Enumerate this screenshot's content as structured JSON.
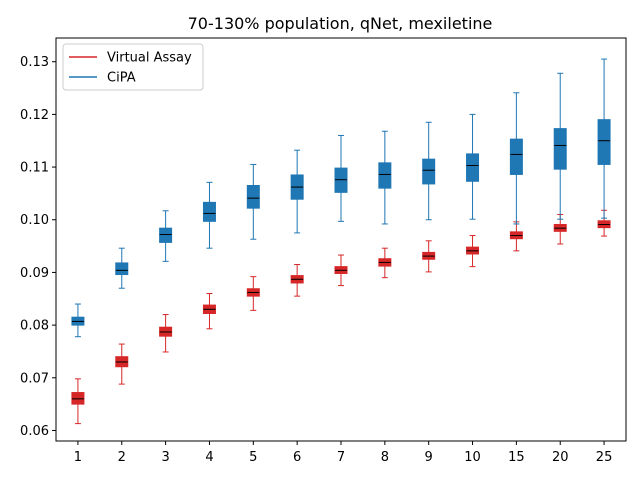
{
  "chart_data": {
    "type": "box",
    "title": "70-130% population, qNet, mexiletine",
    "xlabel": "",
    "ylabel": "",
    "categories": [
      "1",
      "2",
      "3",
      "4",
      "5",
      "6",
      "7",
      "8",
      "9",
      "10",
      "15",
      "20",
      "25"
    ],
    "ylim": [
      0.058,
      0.1345
    ],
    "yticks": [
      0.06,
      0.07,
      0.08,
      0.09,
      0.1,
      0.11,
      0.12,
      0.13
    ],
    "ytick_labels": [
      "0.06",
      "0.07",
      "0.08",
      "0.09",
      "0.10",
      "0.11",
      "0.12",
      "0.13"
    ],
    "legend": {
      "placement": "top-left"
    },
    "series": [
      {
        "name": "Virtual Assay",
        "color": "#d62728",
        "boxes": [
          {
            "whislo": 0.0613,
            "q1": 0.065,
            "med": 0.066,
            "q3": 0.0672,
            "whishi": 0.0698
          },
          {
            "whislo": 0.0688,
            "q1": 0.0721,
            "med": 0.073,
            "q3": 0.074,
            "whishi": 0.0764
          },
          {
            "whislo": 0.0749,
            "q1": 0.0779,
            "med": 0.0787,
            "q3": 0.0796,
            "whishi": 0.082
          },
          {
            "whislo": 0.0793,
            "q1": 0.0822,
            "med": 0.083,
            "q3": 0.0838,
            "whishi": 0.086
          },
          {
            "whislo": 0.0828,
            "q1": 0.0855,
            "med": 0.0862,
            "q3": 0.0869,
            "whishi": 0.0892
          },
          {
            "whislo": 0.0855,
            "q1": 0.088,
            "med": 0.0887,
            "q3": 0.0894,
            "whishi": 0.0915
          },
          {
            "whislo": 0.0875,
            "q1": 0.0898,
            "med": 0.0904,
            "q3": 0.0911,
            "whishi": 0.0933
          },
          {
            "whislo": 0.089,
            "q1": 0.0912,
            "med": 0.0919,
            "q3": 0.0926,
            "whishi": 0.0946
          },
          {
            "whislo": 0.0901,
            "q1": 0.0925,
            "med": 0.0931,
            "q3": 0.0938,
            "whishi": 0.096
          },
          {
            "whislo": 0.0911,
            "q1": 0.0935,
            "med": 0.0941,
            "q3": 0.0948,
            "whishi": 0.097
          },
          {
            "whislo": 0.0941,
            "q1": 0.0964,
            "med": 0.097,
            "q3": 0.0977,
            "whishi": 0.0996
          },
          {
            "whislo": 0.0954,
            "q1": 0.0978,
            "med": 0.0984,
            "q3": 0.0991,
            "whishi": 0.101
          },
          {
            "whislo": 0.0969,
            "q1": 0.0985,
            "med": 0.0991,
            "q3": 0.0998,
            "whishi": 0.1018
          }
        ]
      },
      {
        "name": "CiPA",
        "color": "#1f77b4",
        "boxes": [
          {
            "whislo": 0.0778,
            "q1": 0.08,
            "med": 0.0807,
            "q3": 0.0815,
            "whishi": 0.084
          },
          {
            "whislo": 0.087,
            "q1": 0.0896,
            "med": 0.0904,
            "q3": 0.0918,
            "whishi": 0.0946
          },
          {
            "whislo": 0.0921,
            "q1": 0.0957,
            "med": 0.0972,
            "q3": 0.0984,
            "whishi": 0.1017
          },
          {
            "whislo": 0.0946,
            "q1": 0.0997,
            "med": 0.1012,
            "q3": 0.1033,
            "whishi": 0.1071
          },
          {
            "whislo": 0.0963,
            "q1": 0.1022,
            "med": 0.1041,
            "q3": 0.1065,
            "whishi": 0.1105
          },
          {
            "whislo": 0.0975,
            "q1": 0.1039,
            "med": 0.1062,
            "q3": 0.1085,
            "whishi": 0.1132
          },
          {
            "whislo": 0.0997,
            "q1": 0.1052,
            "med": 0.1076,
            "q3": 0.1098,
            "whishi": 0.116
          },
          {
            "whislo": 0.0992,
            "q1": 0.106,
            "med": 0.1086,
            "q3": 0.1108,
            "whishi": 0.1168
          },
          {
            "whislo": 0.1,
            "q1": 0.1068,
            "med": 0.1094,
            "q3": 0.1115,
            "whishi": 0.1185
          },
          {
            "whislo": 0.1001,
            "q1": 0.1073,
            "med": 0.1103,
            "q3": 0.1125,
            "whishi": 0.12
          },
          {
            "whislo": 0.0992,
            "q1": 0.1086,
            "med": 0.1124,
            "q3": 0.1153,
            "whishi": 0.1241
          },
          {
            "whislo": 0.1001,
            "q1": 0.1096,
            "med": 0.1141,
            "q3": 0.1173,
            "whishi": 0.1278
          },
          {
            "whislo": 0.1003,
            "q1": 0.1105,
            "med": 0.115,
            "q3": 0.119,
            "whishi": 0.1305
          }
        ]
      }
    ]
  }
}
